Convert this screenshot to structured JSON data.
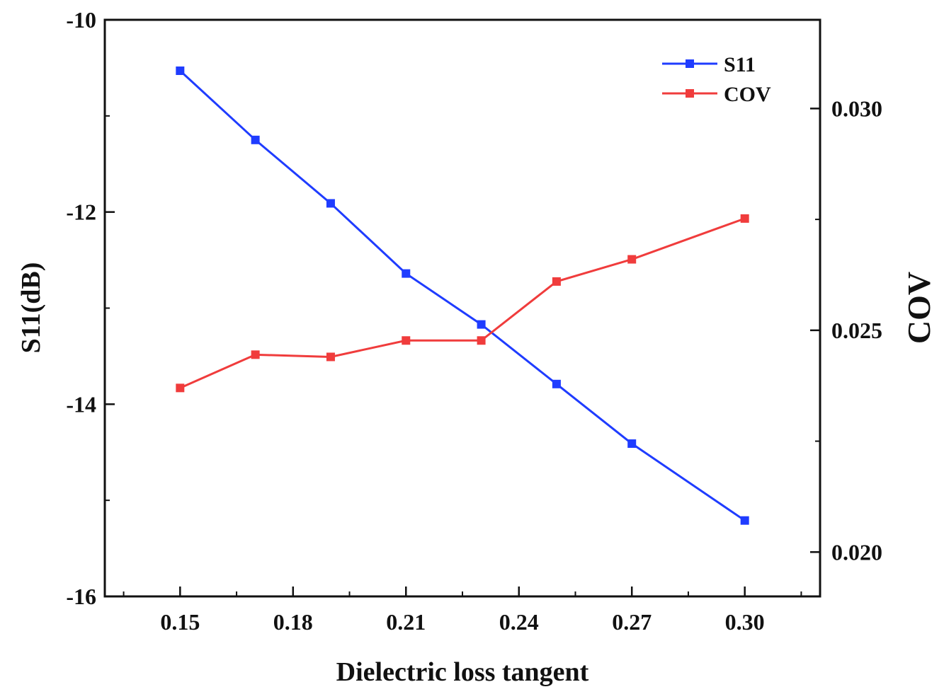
{
  "chart_data": {
    "type": "line",
    "xlabel": "Dielectric loss tangent",
    "ylabel_left": "S11(dB)",
    "ylabel_right": "COV",
    "x": [
      0.15,
      0.17,
      0.19,
      0.21,
      0.23,
      0.25,
      0.27,
      0.3
    ],
    "xlim": [
      0.13,
      0.32
    ],
    "xticks": [
      0.15,
      0.18,
      0.21,
      0.24,
      0.27,
      0.3
    ],
    "xtick_labels": [
      "0.15",
      "0.18",
      "0.21",
      "0.24",
      "0.27",
      "0.30"
    ],
    "ylim_left": [
      -16,
      -10
    ],
    "yticks_left": [
      -16,
      -14,
      -12,
      -10
    ],
    "ytick_labels_left": [
      "-16",
      "-14",
      "-12",
      "-10"
    ],
    "ylim_right": [
      0.019,
      0.032
    ],
    "yticks_right": [
      0.02,
      0.025,
      0.03
    ],
    "ytick_labels_right": [
      "0.020",
      "0.025",
      "0.030"
    ],
    "series": [
      {
        "name": "S11",
        "axis": "left",
        "color": "#1f3cff",
        "values": [
          -10.53,
          -11.25,
          -11.91,
          -12.64,
          -13.17,
          -13.79,
          -14.41,
          -15.21
        ]
      },
      {
        "name": "COV",
        "axis": "right",
        "color": "#f03c3c",
        "values": [
          0.0237,
          0.02445,
          0.0244,
          0.02477,
          0.02477,
          0.0261,
          0.0266,
          0.02752
        ]
      }
    ],
    "legend": "top-right",
    "grid": false
  }
}
